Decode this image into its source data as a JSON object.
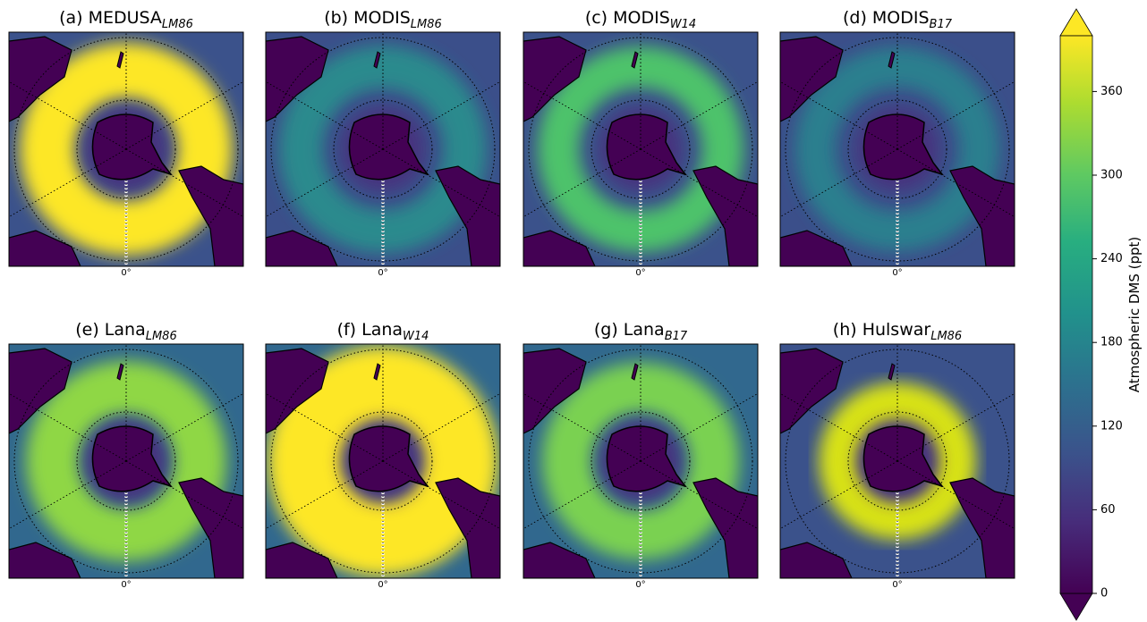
{
  "panels": [
    {
      "title": "(a) MEDUSA",
      "sub": "LM86"
    },
    {
      "title": "(b) MODIS",
      "sub": "LM86"
    },
    {
      "title": "(c) MODIS",
      "sub": "W14"
    },
    {
      "title": "(d) MODIS",
      "sub": "B17"
    },
    {
      "title": "(e) Lana",
      "sub": "LM86"
    },
    {
      "title": "(f) Lana",
      "sub": "W14"
    },
    {
      "title": "(g) Lana",
      "sub": "B17"
    },
    {
      "title": "(h) Hulswar",
      "sub": "LM86"
    }
  ],
  "lon_label": "0°",
  "colorbar": {
    "label": "Atmospheric DMS (ppt)",
    "lim": [
      0,
      400
    ],
    "ticks": [
      0,
      60,
      120,
      180,
      240,
      300,
      360
    ]
  }
}
